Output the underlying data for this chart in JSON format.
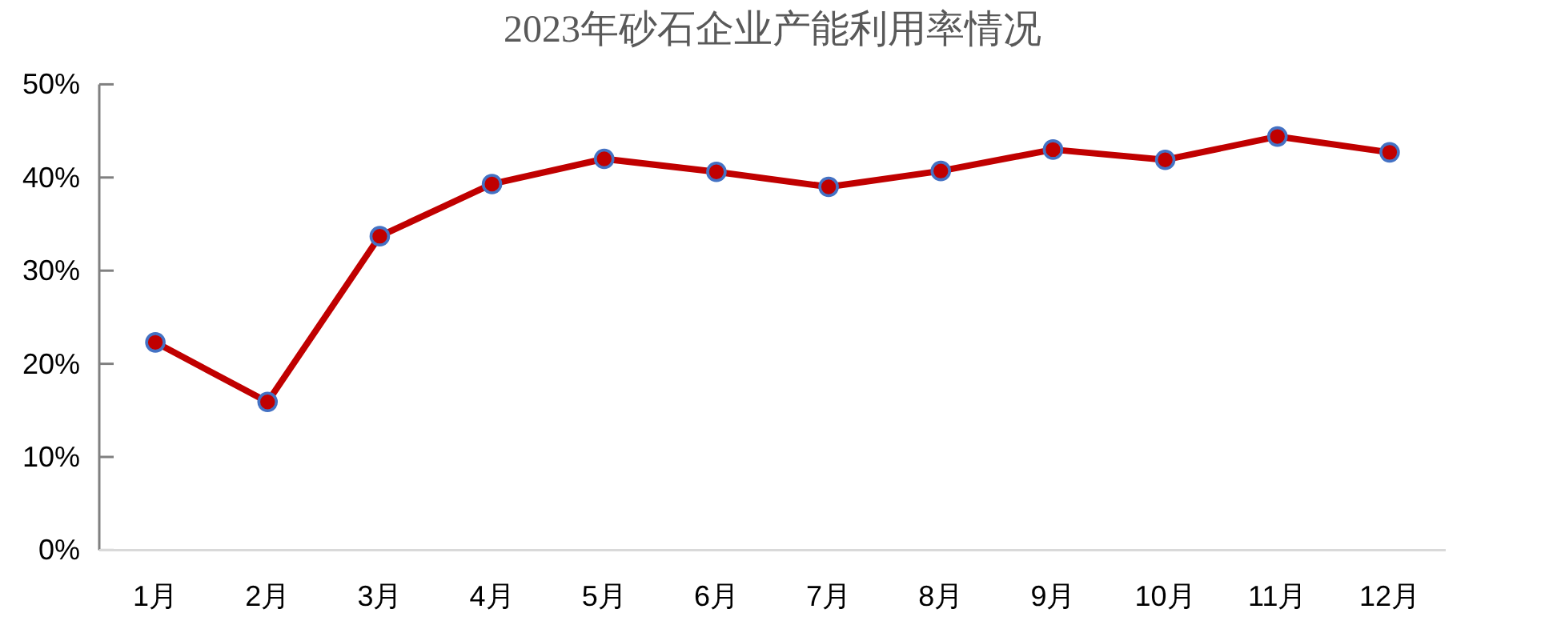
{
  "chart_data": {
    "type": "line",
    "title": "2023年砂石企业产能利用率情况",
    "categories": [
      "1月",
      "2月",
      "3月",
      "4月",
      "5月",
      "6月",
      "7月",
      "8月",
      "9月",
      "10月",
      "11月",
      "12月"
    ],
    "series": [
      {
        "color": "#c00000",
        "values": [
          22.3,
          15.9,
          33.7,
          39.3,
          42.0,
          40.6,
          39.0,
          40.7,
          43.0,
          41.9,
          44.4,
          42.7
        ]
      }
    ],
    "ylim": [
      0,
      50
    ],
    "yticks": [
      {
        "value": 0,
        "label": "0%"
      },
      {
        "value": 10,
        "label": "10%"
      },
      {
        "value": 20,
        "label": "20%"
      },
      {
        "value": 30,
        "label": "30%"
      },
      {
        "value": 40,
        "label": "40%"
      },
      {
        "value": 50,
        "label": "50%"
      }
    ],
    "marker": "circle",
    "line_style": "solid",
    "grid": false
  }
}
